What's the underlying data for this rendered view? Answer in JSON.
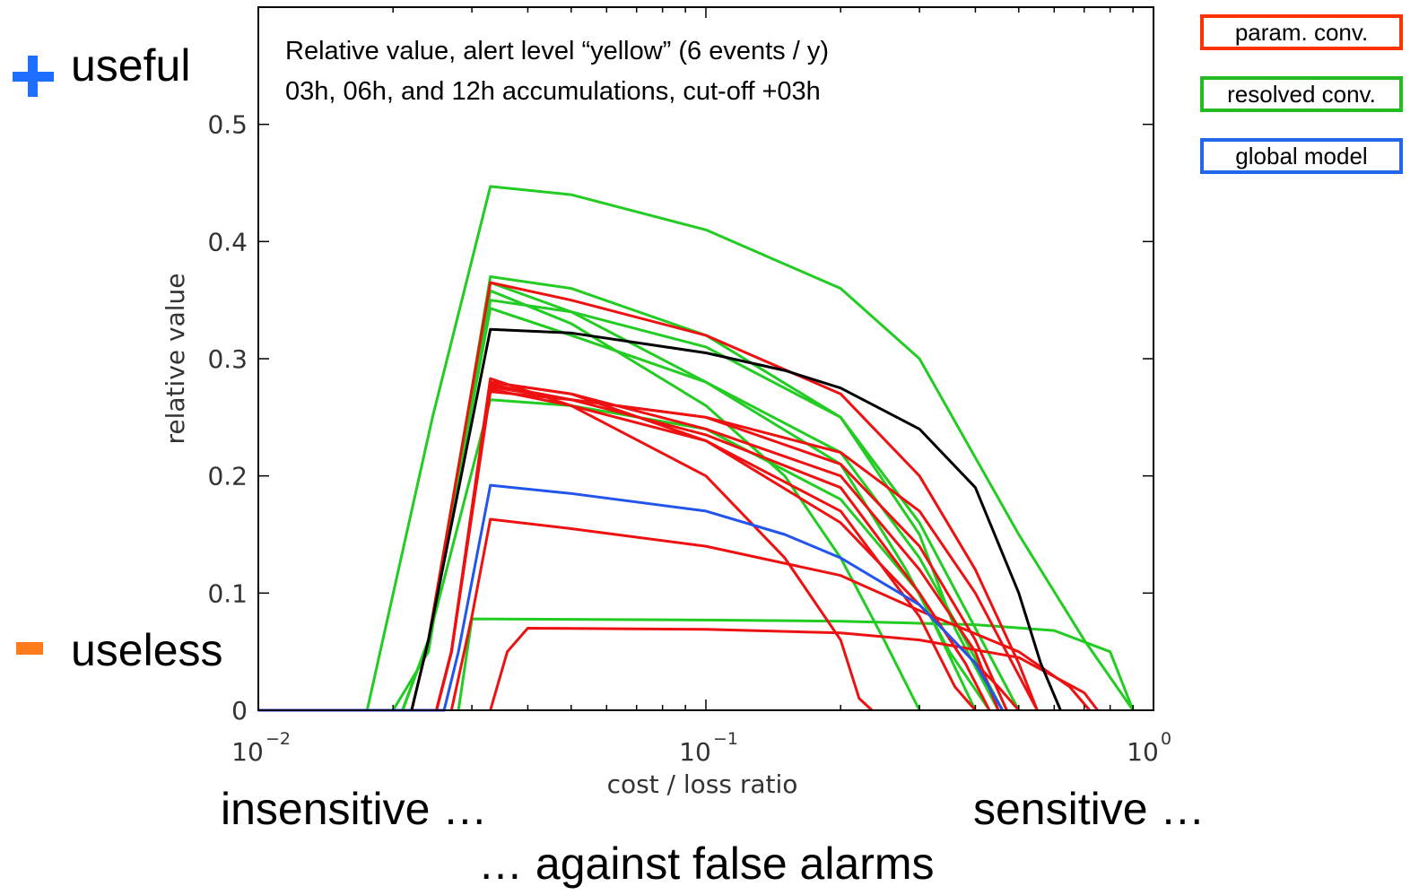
{
  "annotations": {
    "useful": "useful",
    "useless": "useless",
    "insensitive": "insensitive …",
    "sensitive": "sensitive …",
    "false_alarms": "… against false alarms"
  },
  "legend": [
    {
      "label": "param. conv.",
      "color": "#ff3300"
    },
    {
      "label": "resolved conv.",
      "color": "#22bb22"
    },
    {
      "label": "global model",
      "color": "#2266ee"
    }
  ],
  "colors": {
    "useful_icon": "#1e6fff",
    "useless_icon": "#ff7a1a"
  },
  "chart_data": {
    "type": "line",
    "title": "Relative value, alert level “yellow” (6 events / y)",
    "subtitle": "03h, 06h, and 12h accumulations, cut-off +03h",
    "xlabel": "cost / loss ratio",
    "ylabel": "relative value",
    "xscale": "log",
    "xlim": [
      0.01,
      1
    ],
    "ylim": [
      0,
      0.6
    ],
    "grid": false,
    "x_ticks": [
      {
        "base": "10",
        "exp": "−2"
      },
      {
        "base": "10",
        "exp": "−1"
      },
      {
        "base": "10",
        "exp": "0"
      }
    ],
    "y_ticks": [
      "0",
      "0.1",
      "0.2",
      "0.3",
      "0.4",
      "0.5"
    ],
    "y_tick_values": [
      0,
      0.1,
      0.2,
      0.3,
      0.4,
      0.5
    ],
    "colors": {
      "param": "#ee1111",
      "resolved": "#22cc22",
      "global": "#2255ee",
      "reference": "#000000"
    },
    "series": [
      {
        "group": "resolved",
        "points": [
          [
            0.0175,
            0
          ],
          [
            0.0245,
            0.25
          ],
          [
            0.033,
            0.447
          ],
          [
            0.05,
            0.44
          ],
          [
            0.1,
            0.41
          ],
          [
            0.2,
            0.36
          ],
          [
            0.3,
            0.3
          ],
          [
            0.5,
            0.15
          ],
          [
            0.7,
            0.06
          ],
          [
            0.9,
            0
          ]
        ]
      },
      {
        "group": "resolved",
        "points": [
          [
            0.02,
            0
          ],
          [
            0.024,
            0.05
          ],
          [
            0.033,
            0.37
          ],
          [
            0.05,
            0.36
          ],
          [
            0.1,
            0.32
          ],
          [
            0.2,
            0.25
          ],
          [
            0.3,
            0.15
          ],
          [
            0.36,
            0.07
          ],
          [
            0.45,
            0
          ]
        ]
      },
      {
        "group": "resolved",
        "points": [
          [
            0.021,
            0
          ],
          [
            0.024,
            0.06
          ],
          [
            0.033,
            0.365
          ],
          [
            0.05,
            0.34
          ],
          [
            0.1,
            0.28
          ],
          [
            0.2,
            0.21
          ],
          [
            0.28,
            0.12
          ],
          [
            0.35,
            0.05
          ],
          [
            0.43,
            0
          ]
        ]
      },
      {
        "group": "resolved",
        "points": [
          [
            0.021,
            0
          ],
          [
            0.024,
            0.06
          ],
          [
            0.033,
            0.358
          ],
          [
            0.05,
            0.33
          ],
          [
            0.1,
            0.26
          ],
          [
            0.15,
            0.2
          ],
          [
            0.2,
            0.13
          ],
          [
            0.25,
            0.06
          ],
          [
            0.3,
            0
          ]
        ]
      },
      {
        "group": "resolved",
        "points": [
          [
            0.021,
            0
          ],
          [
            0.024,
            0.06
          ],
          [
            0.033,
            0.35
          ],
          [
            0.05,
            0.34
          ],
          [
            0.1,
            0.31
          ],
          [
            0.2,
            0.25
          ],
          [
            0.3,
            0.16
          ],
          [
            0.4,
            0.07
          ],
          [
            0.5,
            0
          ]
        ]
      },
      {
        "group": "resolved",
        "points": [
          [
            0.021,
            0
          ],
          [
            0.024,
            0.06
          ],
          [
            0.033,
            0.343
          ],
          [
            0.05,
            0.32
          ],
          [
            0.1,
            0.28
          ],
          [
            0.2,
            0.22
          ],
          [
            0.3,
            0.13
          ],
          [
            0.38,
            0.06
          ],
          [
            0.46,
            0
          ]
        ]
      },
      {
        "group": "resolved",
        "points": [
          [
            0.021,
            0
          ],
          [
            0.024,
            0.06
          ],
          [
            0.033,
            0.265
          ],
          [
            0.05,
            0.26
          ],
          [
            0.1,
            0.24
          ],
          [
            0.2,
            0.18
          ],
          [
            0.3,
            0.1
          ],
          [
            0.4,
            0
          ]
        ]
      },
      {
        "group": "resolved",
        "points": [
          [
            0.028,
            0
          ],
          [
            0.03,
            0.078
          ],
          [
            0.1,
            0.077
          ],
          [
            0.2,
            0.076
          ],
          [
            0.4,
            0.073
          ],
          [
            0.6,
            0.068
          ],
          [
            0.8,
            0.05
          ],
          [
            0.9,
            0
          ]
        ]
      },
      {
        "group": "param",
        "points": [
          [
            0.022,
            0
          ],
          [
            0.024,
            0.06
          ],
          [
            0.033,
            0.365
          ],
          [
            0.05,
            0.35
          ],
          [
            0.1,
            0.32
          ],
          [
            0.2,
            0.27
          ],
          [
            0.3,
            0.2
          ],
          [
            0.4,
            0.12
          ],
          [
            0.5,
            0.04
          ],
          [
            0.55,
            0
          ]
        ]
      },
      {
        "group": "param",
        "points": [
          [
            0.025,
            0
          ],
          [
            0.027,
            0.05
          ],
          [
            0.033,
            0.283
          ],
          [
            0.05,
            0.26
          ],
          [
            0.1,
            0.2
          ],
          [
            0.15,
            0.13
          ],
          [
            0.2,
            0.06
          ],
          [
            0.22,
            0.01
          ],
          [
            0.235,
            0
          ]
        ]
      },
      {
        "group": "param",
        "points": [
          [
            0.025,
            0
          ],
          [
            0.027,
            0.05
          ],
          [
            0.033,
            0.28
          ],
          [
            0.05,
            0.27
          ],
          [
            0.1,
            0.23
          ],
          [
            0.2,
            0.16
          ],
          [
            0.3,
            0.09
          ],
          [
            0.45,
            0.02
          ],
          [
            0.5,
            0
          ]
        ]
      },
      {
        "group": "param",
        "points": [
          [
            0.025,
            0
          ],
          [
            0.027,
            0.05
          ],
          [
            0.033,
            0.28
          ],
          [
            0.05,
            0.27
          ],
          [
            0.1,
            0.24
          ],
          [
            0.2,
            0.2
          ],
          [
            0.3,
            0.12
          ],
          [
            0.4,
            0.05
          ],
          [
            0.45,
            0
          ]
        ]
      },
      {
        "group": "param",
        "points": [
          [
            0.025,
            0
          ],
          [
            0.027,
            0.05
          ],
          [
            0.033,
            0.278
          ],
          [
            0.05,
            0.265
          ],
          [
            0.1,
            0.235
          ],
          [
            0.2,
            0.19
          ],
          [
            0.3,
            0.1
          ],
          [
            0.38,
            0.04
          ],
          [
            0.43,
            0
          ]
        ]
      },
      {
        "group": "param",
        "points": [
          [
            0.025,
            0
          ],
          [
            0.027,
            0.05
          ],
          [
            0.033,
            0.276
          ],
          [
            0.05,
            0.265
          ],
          [
            0.1,
            0.25
          ],
          [
            0.2,
            0.21
          ],
          [
            0.3,
            0.14
          ],
          [
            0.4,
            0.06
          ],
          [
            0.47,
            0
          ]
        ]
      },
      {
        "group": "param",
        "points": [
          [
            0.025,
            0
          ],
          [
            0.027,
            0.05
          ],
          [
            0.033,
            0.274
          ],
          [
            0.05,
            0.26
          ],
          [
            0.1,
            0.23
          ],
          [
            0.2,
            0.17
          ],
          [
            0.3,
            0.08
          ],
          [
            0.36,
            0.02
          ],
          [
            0.4,
            0
          ]
        ]
      },
      {
        "group": "param",
        "points": [
          [
            0.025,
            0
          ],
          [
            0.027,
            0.05
          ],
          [
            0.033,
            0.272
          ],
          [
            0.05,
            0.265
          ],
          [
            0.1,
            0.25
          ],
          [
            0.2,
            0.22
          ],
          [
            0.3,
            0.17
          ],
          [
            0.4,
            0.1
          ],
          [
            0.55,
            0
          ]
        ]
      },
      {
        "group": "param",
        "points": [
          [
            0.027,
            0
          ],
          [
            0.03,
            0.08
          ],
          [
            0.033,
            0.163
          ],
          [
            0.05,
            0.155
          ],
          [
            0.1,
            0.14
          ],
          [
            0.2,
            0.115
          ],
          [
            0.3,
            0.085
          ],
          [
            0.5,
            0.05
          ],
          [
            0.65,
            0.02
          ],
          [
            0.72,
            0
          ]
        ]
      },
      {
        "group": "param",
        "points": [
          [
            0.033,
            0
          ],
          [
            0.036,
            0.05
          ],
          [
            0.04,
            0.07
          ],
          [
            0.1,
            0.069
          ],
          [
            0.2,
            0.066
          ],
          [
            0.3,
            0.06
          ],
          [
            0.5,
            0.045
          ],
          [
            0.7,
            0.015
          ],
          [
            0.75,
            0
          ]
        ]
      },
      {
        "group": "global",
        "points": [
          [
            0.01,
            0
          ],
          [
            0.026,
            0
          ],
          [
            0.028,
            0.05
          ],
          [
            0.033,
            0.192
          ],
          [
            0.05,
            0.185
          ],
          [
            0.1,
            0.17
          ],
          [
            0.15,
            0.15
          ],
          [
            0.2,
            0.13
          ],
          [
            0.3,
            0.09
          ],
          [
            0.4,
            0.04
          ],
          [
            0.46,
            0
          ]
        ]
      },
      {
        "group": "reference",
        "points": [
          [
            0.022,
            0
          ],
          [
            0.024,
            0.06
          ],
          [
            0.033,
            0.325
          ],
          [
            0.05,
            0.322
          ],
          [
            0.1,
            0.305
          ],
          [
            0.15,
            0.29
          ],
          [
            0.2,
            0.275
          ],
          [
            0.3,
            0.24
          ],
          [
            0.4,
            0.19
          ],
          [
            0.5,
            0.1
          ],
          [
            0.56,
            0.04
          ],
          [
            0.62,
            0
          ]
        ]
      }
    ]
  }
}
